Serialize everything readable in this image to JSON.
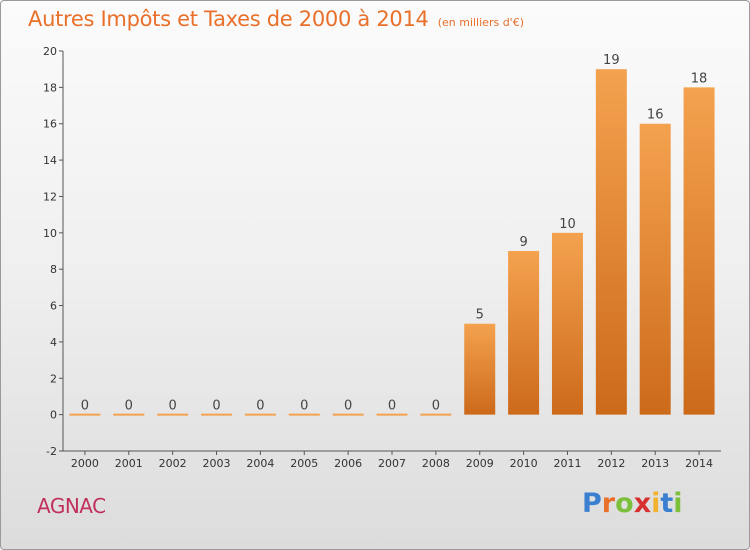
{
  "chart_data": {
    "type": "bar",
    "title": "Autres Impôts et Taxes de 2000 à 2014",
    "unit": "(en milliers d'€)",
    "categories": [
      "2000",
      "2001",
      "2002",
      "2003",
      "2004",
      "2005",
      "2006",
      "2007",
      "2008",
      "2009",
      "2010",
      "2011",
      "2012",
      "2013",
      "2014"
    ],
    "values": [
      0,
      0,
      0,
      0,
      0,
      0,
      0,
      0,
      0,
      5,
      9,
      10,
      19,
      16,
      18
    ],
    "ylim": [
      -2,
      20
    ],
    "yticks": [
      -2,
      0,
      2,
      4,
      6,
      8,
      10,
      12,
      14,
      16,
      18,
      20
    ],
    "grid": false,
    "xlabel": "",
    "ylabel": ""
  },
  "commune": "AGNAC",
  "brand": {
    "letters": [
      "P",
      "r",
      "o",
      "x",
      "i",
      "t",
      "i"
    ],
    "colors": [
      "#3a7fd0",
      "#e8702a",
      "#7bbf3a",
      "#d6302f",
      "#f2b22e",
      "#3a7fd0",
      "#7bbf3a"
    ]
  },
  "colors": {
    "bar_top": "#f4a24f",
    "bar_bottom": "#cc6a1a",
    "title": "#e8702a",
    "commune": "#c0305a"
  }
}
